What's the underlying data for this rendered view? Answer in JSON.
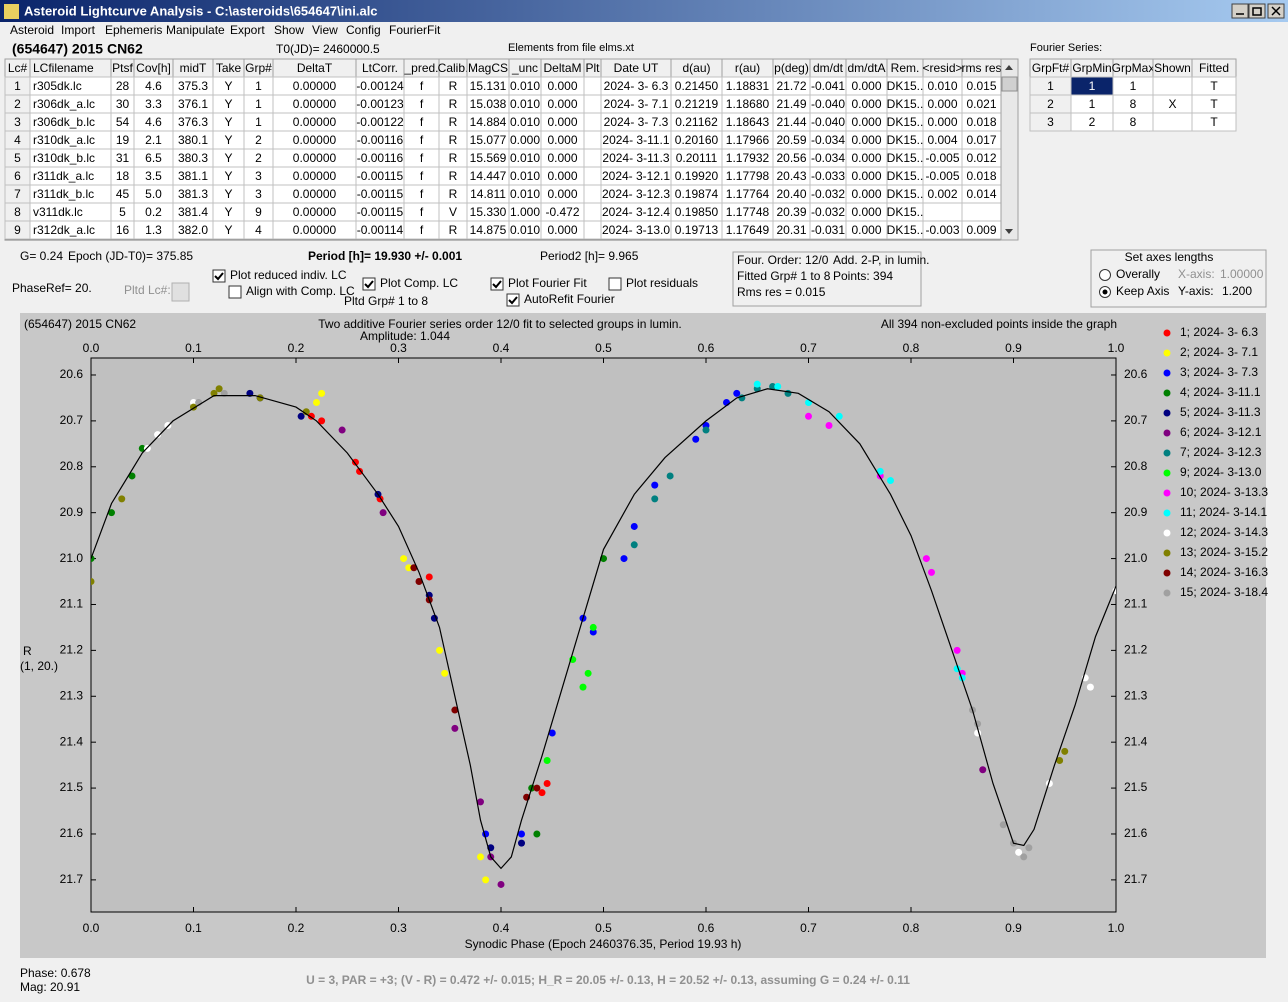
{
  "window": {
    "title": "Asteroid Lightcurve Analysis - C:\\asteroids\\654647\\ini.alc"
  },
  "menu": [
    "Asteroid",
    "Import",
    "Ephemeris",
    "Manipulate",
    "Export",
    "Show",
    "View",
    "Config",
    "FourierFit"
  ],
  "header": {
    "object": "(654647) 2015 CN62",
    "t0": "T0(JD)= 2460000.5",
    "elements": "Elements from file elms.xt"
  },
  "table": {
    "columns": [
      "Lc#",
      "LCfilename",
      "Ptsf",
      "Cov[h]",
      "midT",
      "Take",
      "Grp#",
      "DeltaT",
      "LtCorr.",
      "_pred.",
      "Calib.",
      "MagCS",
      "_unc",
      "DeltaM",
      "Plt",
      "Date UT",
      "d(au)",
      "r(au)",
      "p(deg)",
      "dm/dt",
      "dm/dtA",
      "Rem.",
      "<resid>",
      "rms res"
    ],
    "rows": [
      [
        "1",
        "r305dk.lc",
        "28",
        "4.6",
        "375.3",
        "Y",
        "1",
        "0.00000",
        "-0.00124",
        "f",
        "R",
        "15.131",
        "0.010",
        "0.000",
        null,
        "2024- 3- 6.3",
        "0.21450",
        "1.18831",
        "21.72",
        "-0.041",
        "0.000",
        "DK15..",
        "0.010",
        "0.015"
      ],
      [
        "2",
        "r306dk_a.lc",
        "30",
        "3.3",
        "376.1",
        "Y",
        "1",
        "0.00000",
        "-0.00123",
        "f",
        "R",
        "15.038",
        "0.010",
        "0.000",
        null,
        "2024- 3- 7.1",
        "0.21219",
        "1.18680",
        "21.49",
        "-0.040",
        "0.000",
        "DK15..",
        "0.000",
        "0.021"
      ],
      [
        "3",
        "r306dk_b.lc",
        "54",
        "4.6",
        "376.3",
        "Y",
        "1",
        "0.00000",
        "-0.00122",
        "f",
        "R",
        "14.884",
        "0.010",
        "0.000",
        null,
        "2024- 3- 7.3",
        "0.21162",
        "1.18643",
        "21.44",
        "-0.040",
        "0.000",
        "DK15..",
        "0.000",
        "0.018"
      ],
      [
        "4",
        "r310dk_a.lc",
        "19",
        "2.1",
        "380.1",
        "Y",
        "2",
        "0.00000",
        "-0.00116",
        "f",
        "R",
        "15.077",
        "0.000",
        "0.000",
        null,
        "2024- 3-11.1",
        "0.20160",
        "1.17966",
        "20.59",
        "-0.034",
        "0.000",
        "DK15..",
        "0.004",
        "0.017"
      ],
      [
        "5",
        "r310dk_b.lc",
        "31",
        "6.5",
        "380.3",
        "Y",
        "2",
        "0.00000",
        "-0.00116",
        "f",
        "R",
        "15.569",
        "0.010",
        "0.000",
        null,
        "2024- 3-11.3",
        "0.20111",
        "1.17932",
        "20.56",
        "-0.034",
        "0.000",
        "DK15..",
        "-0.005",
        "0.012"
      ],
      [
        "6",
        "r311dk_a.lc",
        "18",
        "3.5",
        "381.1",
        "Y",
        "3",
        "0.00000",
        "-0.00115",
        "f",
        "R",
        "14.447",
        "0.010",
        "0.000",
        null,
        "2024- 3-12.1",
        "0.19920",
        "1.17798",
        "20.43",
        "-0.033",
        "0.000",
        "DK15..",
        "-0.005",
        "0.018"
      ],
      [
        "7",
        "r311dk_b.lc",
        "45",
        "5.0",
        "381.3",
        "Y",
        "3",
        "0.00000",
        "-0.00115",
        "f",
        "R",
        "14.811",
        "0.010",
        "0.000",
        null,
        "2024- 3-12.3",
        "0.19874",
        "1.17764",
        "20.40",
        "-0.032",
        "0.000",
        "DK15..",
        "0.002",
        "0.014"
      ],
      [
        "8",
        "v311dk.lc",
        "5",
        "0.2",
        "381.4",
        "Y",
        "9",
        "0.00000",
        "-0.00115",
        "f",
        "V",
        "15.330",
        "1.000",
        "-0.472",
        null,
        "2024- 3-12.4",
        "0.19850",
        "1.17748",
        "20.39",
        "-0.032",
        "0.000",
        "DK15..",
        null,
        null
      ],
      [
        "9",
        "r312dk_a.lc",
        "16",
        "1.3",
        "382.0",
        "Y",
        "4",
        "0.00000",
        "-0.00114",
        "f",
        "R",
        "14.875",
        "0.010",
        "0.000",
        null,
        "2024- 3-13.0",
        "0.19713",
        "1.17649",
        "20.31",
        "-0.031",
        "0.000",
        "DK15..",
        "-0.003",
        "0.009"
      ]
    ]
  },
  "fourier": {
    "title": "Fourier Series:",
    "columns": [
      "GrpFt#",
      "GrpMin",
      "GrpMax",
      "Shown",
      "Fitted"
    ],
    "rows": [
      [
        "1",
        "1",
        "1",
        null,
        "T"
      ],
      [
        "2",
        "1",
        "8",
        "X",
        "T"
      ],
      [
        "3",
        "2",
        "8",
        null,
        "T"
      ]
    ]
  },
  "info": {
    "g": "G= 0.24",
    "epoch": "Epoch (JD-T0)= 375.85",
    "period": "Period [h]= 19.930 +/- 0.001",
    "period2": "Period2 [h]= 9.965",
    "phaseref": "PhaseRef= 20.",
    "pltd_lc": "Pltd Lc#:",
    "pltd_grp": "Pltd Grp#  1   to   8",
    "checkboxes": [
      {
        "label": "Plot reduced indiv. LC",
        "checked": true
      },
      {
        "label": "Align with Comp. LC",
        "checked": false
      },
      {
        "label": "Plot Comp. LC",
        "checked": true
      },
      {
        "label": "Plot Fourier Fit",
        "checked": true
      },
      {
        "label": "Plot residuals",
        "checked": false
      },
      {
        "label": "AutoRefit Fourier",
        "checked": true
      }
    ],
    "fit_box": [
      "Four. Order: 12/0",
      "Add. 2-P, in lumin.",
      "Fitted Grp# 1 to 8",
      "Points: 394",
      "Rms res    = 0.015"
    ]
  },
  "axes_box": {
    "title": "Set axes lengths",
    "radios": [
      {
        "label": "Overally",
        "checked": false
      },
      {
        "label": "Keep Axis",
        "checked": true
      }
    ],
    "x_label": "X-axis:",
    "x_value": "1.00000",
    "y_label": "Y-axis:",
    "y_value": "1.200"
  },
  "chart_data": {
    "type": "scatter",
    "title": "(654647) 2015 CN62",
    "subtitle": "Two additive Fourier series order 12/0 fit to selected groups in lumin.",
    "amplitude": "Amplitude: 1.044",
    "annotation": "All 394 non-excluded points inside the graph",
    "xlabel": "Synodic Phase (Epoch 2460376.35, Period 19.93 h)",
    "ylabel": [
      "R",
      "(1, 20.)"
    ],
    "xlim": [
      0,
      1
    ],
    "ylim": [
      20.563,
      21.77
    ],
    "y_inverted": true,
    "xticks": [
      {
        "value": 0,
        "label": "0.0"
      },
      0.1,
      0.2,
      0.3,
      0.4,
      0.5,
      0.6,
      0.7,
      0.8,
      0.9,
      {
        "value": 1,
        "label": "1.0"
      }
    ],
    "yticks": [
      20.6,
      20.7,
      20.8,
      20.9,
      {
        "value": 21,
        "label": "21.0"
      },
      21.1,
      21.2,
      21.3,
      21.4,
      21.5,
      21.6,
      21.7
    ],
    "fit": {
      "color": "#000000",
      "x": [
        0,
        0.02,
        0.05,
        0.08,
        0.12,
        0.16,
        0.2,
        0.22,
        0.25,
        0.28,
        0.3,
        0.32,
        0.34,
        0.36,
        0.37,
        0.38,
        0.39,
        0.4,
        0.41,
        0.42,
        0.44,
        0.46,
        0.48,
        0.5,
        0.53,
        0.56,
        0.6,
        0.63,
        0.66,
        0.69,
        0.72,
        0.75,
        0.78,
        0.8,
        0.82,
        0.84,
        0.86,
        0.88,
        0.9,
        0.91,
        0.92,
        0.94,
        0.96,
        0.98,
        1
      ],
      "values": [
        21.0,
        20.88,
        20.77,
        20.7,
        20.645,
        20.645,
        20.67,
        20.7,
        20.77,
        20.86,
        20.93,
        21.03,
        21.15,
        21.35,
        21.45,
        21.57,
        21.65,
        21.675,
        21.65,
        21.57,
        21.43,
        21.28,
        21.13,
        20.98,
        20.86,
        20.78,
        20.7,
        20.65,
        20.63,
        20.64,
        20.68,
        20.75,
        20.86,
        20.95,
        21.07,
        21.2,
        21.33,
        21.49,
        21.62,
        21.625,
        21.59,
        21.45,
        21.32,
        21.17,
        21.06
      ]
    },
    "series": [
      {
        "name": "1; 2024- 3- 6.3",
        "color": "#ff0000",
        "x": [
          0.215,
          0.225,
          0.258,
          0.262,
          0.282,
          0.33,
          0.44,
          0.445
        ],
        "values": [
          20.69,
          20.7,
          20.79,
          20.81,
          20.87,
          21.04,
          21.51,
          21.49
        ]
      },
      {
        "name": "2; 2024- 3- 7.1",
        "color": "#ffff00",
        "x": [
          0.22,
          0.225,
          0.305,
          0.31,
          0.34,
          0.345,
          0.38,
          0.385
        ],
        "values": [
          20.66,
          20.64,
          21.0,
          21.02,
          21.2,
          21.25,
          21.65,
          21.7
        ]
      },
      {
        "name": "3; 2024- 3- 7.3",
        "color": "#0000ff",
        "x": [
          0.385,
          0.42,
          0.45,
          0.48,
          0.49,
          0.52,
          0.53,
          0.55,
          0.59,
          0.6,
          0.62,
          0.63
        ],
        "values": [
          21.6,
          21.6,
          21.38,
          21.13,
          21.16,
          21.0,
          20.93,
          20.84,
          20.74,
          20.71,
          20.66,
          20.64
        ]
      },
      {
        "name": "4; 2024- 3-11.1",
        "color": "#008000",
        "x": [
          0.0,
          0.02,
          0.04,
          0.05,
          0.43,
          0.435,
          0.5
        ],
        "values": [
          21.0,
          20.9,
          20.82,
          20.76,
          21.5,
          21.6,
          21.0
        ]
      },
      {
        "name": "5; 2024- 3-11.3",
        "color": "#000080",
        "x": [
          0.155,
          0.165,
          0.205,
          0.28,
          0.33,
          0.335,
          0.39,
          0.42
        ],
        "values": [
          20.64,
          20.65,
          20.69,
          20.86,
          21.08,
          21.13,
          21.63,
          21.62
        ]
      },
      {
        "name": "6; 2024- 3-12.1",
        "color": "#800080",
        "x": [
          0.245,
          0.285,
          0.355,
          0.38,
          0.39,
          0.4,
          0.87
        ],
        "values": [
          20.72,
          20.9,
          21.37,
          21.53,
          21.65,
          21.71,
          21.46
        ]
      },
      {
        "name": "7; 2024- 3-12.3",
        "color": "#008080",
        "x": [
          0.53,
          0.55,
          0.565,
          0.6,
          0.635,
          0.65,
          0.665,
          0.68
        ],
        "values": [
          20.97,
          20.87,
          20.82,
          20.72,
          20.65,
          20.63,
          20.625,
          20.64
        ]
      },
      {
        "name": "9; 2024- 3-13.0",
        "color": "#00ff00",
        "x": [
          0.47,
          0.48,
          0.485,
          0.49,
          0.445
        ],
        "values": [
          21.22,
          21.28,
          21.25,
          21.15,
          21.44
        ]
      },
      {
        "name": "10; 2024- 3-13.3",
        "color": "#ff00ff",
        "x": [
          0.7,
          0.72,
          0.77,
          0.815,
          0.82,
          0.845,
          0.85
        ],
        "values": [
          20.69,
          20.71,
          20.82,
          21.0,
          21.03,
          21.2,
          21.25
        ]
      },
      {
        "name": "11; 2024- 3-14.1",
        "color": "#00ffff",
        "x": [
          0.65,
          0.67,
          0.7,
          0.73,
          0.77,
          0.78,
          0.845,
          0.85
        ],
        "values": [
          20.62,
          20.625,
          20.66,
          20.69,
          20.81,
          20.83,
          21.24,
          21.26
        ]
      },
      {
        "name": "12; 2024- 3-14.3",
        "color": "#ffffff",
        "x": [
          0.055,
          0.065,
          0.075,
          0.1,
          0.865,
          0.935,
          0.97,
          0.975,
          1.0,
          0.905
        ],
        "values": [
          20.76,
          20.73,
          20.71,
          20.66,
          21.38,
          21.49,
          21.26,
          21.28,
          21.07,
          21.64
        ]
      },
      {
        "name": "13; 2024- 3-15.2",
        "color": "#808000",
        "x": [
          0.0,
          0.03,
          0.1,
          0.12,
          0.125,
          0.165,
          0.21,
          0.945,
          0.95
        ],
        "values": [
          21.05,
          20.87,
          20.67,
          20.64,
          20.63,
          20.65,
          20.68,
          21.44,
          21.42
        ]
      },
      {
        "name": "14; 2024- 3-16.3",
        "color": "#800000",
        "x": [
          0.315,
          0.32,
          0.33,
          0.355,
          0.425,
          0.435
        ],
        "values": [
          21.02,
          21.05,
          21.09,
          21.33,
          21.52,
          21.5
        ]
      },
      {
        "name": "15; 2024- 3-18.4",
        "color": "#a0a0a0",
        "x": [
          0.105,
          0.13,
          0.86,
          0.865,
          0.9,
          0.915,
          0.91,
          0.89
        ],
        "values": [
          20.66,
          20.64,
          21.33,
          21.36,
          21.62,
          21.63,
          21.65,
          21.58
        ]
      }
    ]
  },
  "status": {
    "phase": "Phase:  0.678",
    "mag": "Mag:   20.91",
    "line": "U = 3, PAR = +3; (V - R) = 0.472 +/- 0.015; H_R = 20.05 +/- 0.13, H = 20.52 +/- 0.13, assuming G = 0.24 +/- 0.11"
  }
}
